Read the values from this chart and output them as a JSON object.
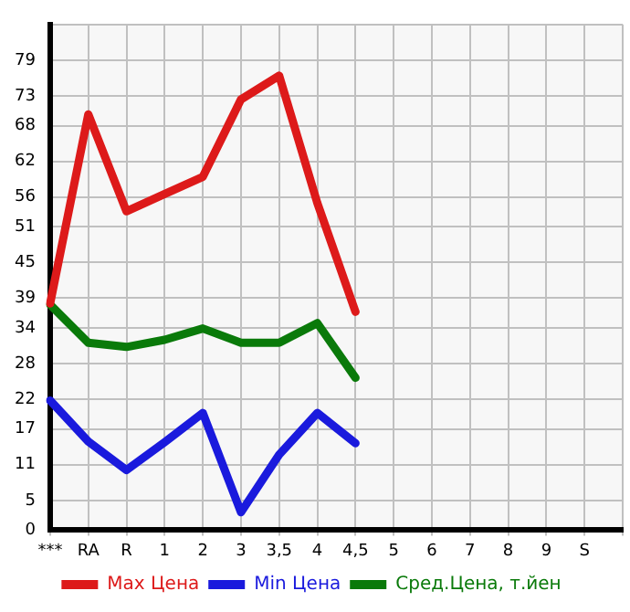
{
  "chart_data": {
    "type": "line",
    "categories": [
      "***",
      "RA",
      "R",
      "1",
      "2",
      "3",
      "3,5",
      "4",
      "4,5",
      "5",
      "6",
      "7",
      "8",
      "9",
      "S",
      null
    ],
    "series": [
      {
        "name": "Max Цена",
        "color": "#dd1a1a",
        "values": [
          38.1,
          69.9,
          53.6,
          56.5,
          59.4,
          72.4,
          76.4,
          55.0,
          36.7,
          null,
          null,
          null,
          null,
          null,
          null,
          null
        ]
      },
      {
        "name": "Min Цена",
        "color": "#1a1add",
        "values": [
          21.8,
          14.9,
          10.1,
          14.8,
          19.7,
          3.0,
          12.7,
          19.7,
          14.6,
          null,
          null,
          null,
          null,
          null,
          null,
          null
        ]
      },
      {
        "name": "Сред.Цена, т.йен",
        "color": "#0a7a0a",
        "values": [
          37.9,
          31.5,
          30.8,
          32.0,
          33.9,
          31.5,
          31.5,
          34.8,
          25.6,
          null,
          null,
          null,
          null,
          null,
          null,
          null
        ]
      }
    ],
    "ylim": [
      0,
      85
    ],
    "yticks": [
      0,
      5,
      11,
      17,
      22,
      28,
      34,
      39,
      45,
      51,
      56,
      62,
      68,
      73,
      79,
      {
        "value": 85,
        "label": null
      }
    ],
    "grid": true,
    "legend": "bottom",
    "marker": "none",
    "line_style": "solid"
  }
}
